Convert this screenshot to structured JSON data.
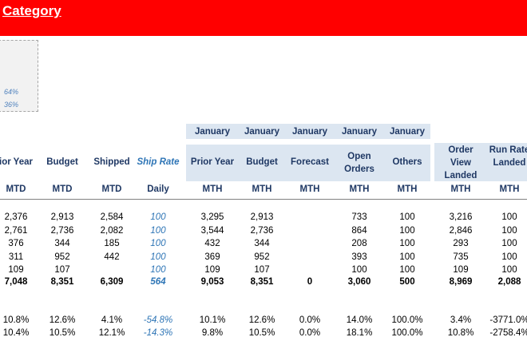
{
  "banner": {
    "title": "Category"
  },
  "side_box": {
    "values": [
      "64%",
      "36%"
    ]
  },
  "months": [
    "January",
    "January",
    "January",
    "January",
    "January"
  ],
  "columns": [
    {
      "h1": "ior Year",
      "h2": "MTD"
    },
    {
      "h1": "Budget",
      "h2": "MTD"
    },
    {
      "h1": "Shipped",
      "h2": "MTD"
    },
    {
      "h1": "Ship Rate",
      "h2": "Daily"
    },
    {
      "h1": "Prior Year",
      "h2": "MTH"
    },
    {
      "h1": "Budget",
      "h2": "MTH"
    },
    {
      "h1": "Forecast",
      "h2": "MTH"
    },
    {
      "h1": "Open Orders",
      "h2": "MTH"
    },
    {
      "h1": "Others",
      "h2": "MTH"
    },
    {
      "h1": "Order View Landed",
      "h2": "MTH"
    },
    {
      "h1": "Run Rate Landed",
      "h2": "MTH"
    }
  ],
  "rows": [
    [
      "2,376",
      "2,913",
      "2,584",
      "100",
      "3,295",
      "2,913",
      "",
      "733",
      "100",
      "3,216",
      "100"
    ],
    [
      "2,761",
      "2,736",
      "2,082",
      "100",
      "3,544",
      "2,736",
      "",
      "864",
      "100",
      "2,846",
      "100"
    ],
    [
      "376",
      "344",
      "185",
      "100",
      "432",
      "344",
      "",
      "208",
      "100",
      "293",
      "100"
    ],
    [
      "311",
      "952",
      "442",
      "100",
      "369",
      "952",
      "",
      "393",
      "100",
      "735",
      "100"
    ],
    [
      "109",
      "107",
      "",
      "100",
      "109",
      "107",
      "",
      "100",
      "100",
      "109",
      "100"
    ]
  ],
  "total": [
    "7,048",
    "8,351",
    "6,309",
    "564",
    "9,053",
    "8,351",
    "0",
    "3,060",
    "500",
    "8,969",
    "2,088"
  ],
  "pct_rows": [
    [
      "10.8%",
      "12.6%",
      "4.1%",
      "-54.8%",
      "10.1%",
      "12.6%",
      "0.0%",
      "14.0%",
      "100.0%",
      "3.4%",
      "-3771.0%"
    ],
    [
      "10.4%",
      "10.5%",
      "12.1%",
      "-14.3%",
      "9.8%",
      "10.5%",
      "0.0%",
      "18.1%",
      "100.0%",
      "10.8%",
      "-2758.4%"
    ]
  ]
}
